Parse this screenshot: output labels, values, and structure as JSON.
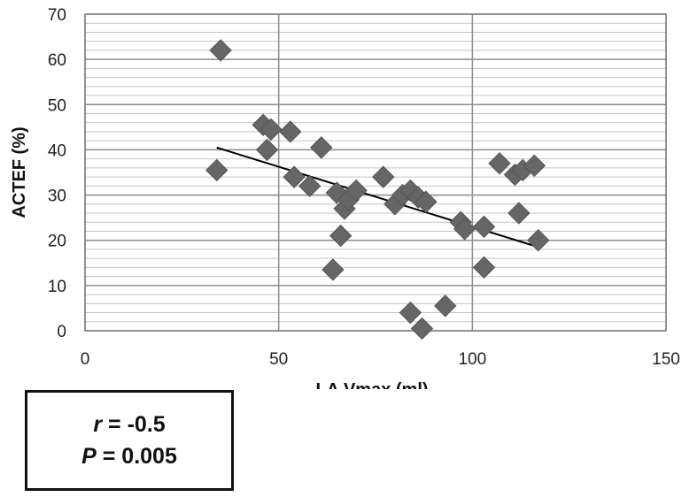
{
  "chart_data": {
    "type": "scatter",
    "title": "",
    "xlabel": "LA Vmax (ml)",
    "ylabel": "ACTEF (%)",
    "xlim": [
      0,
      150
    ],
    "ylim": [
      0,
      70
    ],
    "xticks": [
      "0",
      "50",
      "100",
      "150"
    ],
    "yticks": [
      "0",
      "10",
      "20",
      "30",
      "40",
      "50",
      "60",
      "70"
    ],
    "grid": "major and minor horizontal, major vertical",
    "marker": "diamond",
    "colors": {
      "marker": "#666666",
      "gridMajor": "#8c8c8c",
      "gridMinor": "#c4c4c4",
      "trend": "#000000"
    },
    "points": [
      {
        "x": 35,
        "y": 62
      },
      {
        "x": 34,
        "y": 35.5
      },
      {
        "x": 46,
        "y": 45.5
      },
      {
        "x": 48,
        "y": 44.5
      },
      {
        "x": 47,
        "y": 40
      },
      {
        "x": 53,
        "y": 44
      },
      {
        "x": 54,
        "y": 34
      },
      {
        "x": 58,
        "y": 32
      },
      {
        "x": 61,
        "y": 40.5
      },
      {
        "x": 64,
        "y": 13.5
      },
      {
        "x": 65,
        "y": 30.5
      },
      {
        "x": 66,
        "y": 21
      },
      {
        "x": 67,
        "y": 27
      },
      {
        "x": 68,
        "y": 29
      },
      {
        "x": 70,
        "y": 31
      },
      {
        "x": 77,
        "y": 34
      },
      {
        "x": 80,
        "y": 28
      },
      {
        "x": 82,
        "y": 30
      },
      {
        "x": 84,
        "y": 31
      },
      {
        "x": 84,
        "y": 4
      },
      {
        "x": 86,
        "y": 29.5
      },
      {
        "x": 88,
        "y": 28.5
      },
      {
        "x": 87,
        "y": 0.5
      },
      {
        "x": 93,
        "y": 5.5
      },
      {
        "x": 97,
        "y": 24
      },
      {
        "x": 98,
        "y": 22.5
      },
      {
        "x": 103,
        "y": 23
      },
      {
        "x": 103,
        "y": 14
      },
      {
        "x": 107,
        "y": 37
      },
      {
        "x": 111,
        "y": 34.5
      },
      {
        "x": 112,
        "y": 26
      },
      {
        "x": 113,
        "y": 35.5
      },
      {
        "x": 116,
        "y": 36.5
      },
      {
        "x": 117,
        "y": 20
      }
    ],
    "trendline": {
      "x": [
        34,
        117
      ],
      "y": [
        40.5,
        18.5
      ]
    }
  },
  "stats": {
    "r_var": "r",
    "r_text": " = -0.5",
    "p_var": "P",
    "p_text": " = 0.005"
  }
}
